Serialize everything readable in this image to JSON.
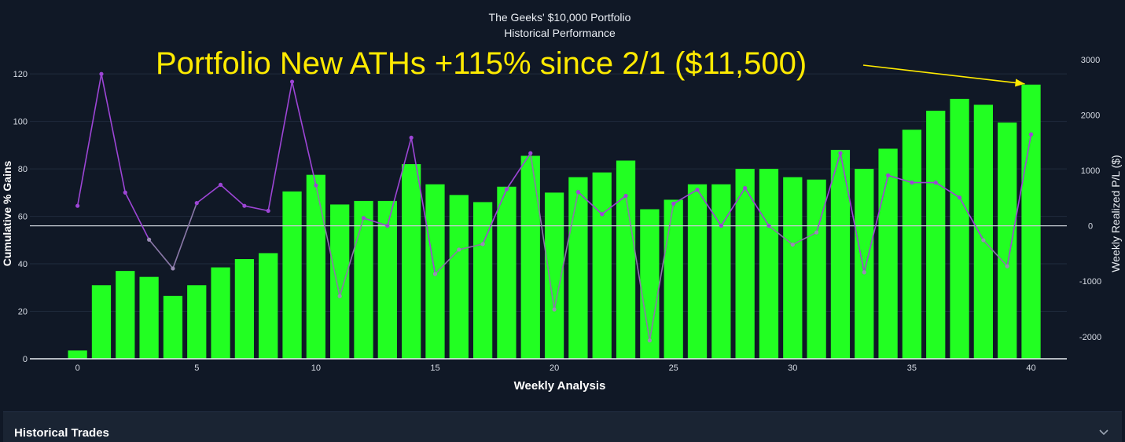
{
  "chart_data": {
    "type": "bar",
    "title": "The Geeks' $10,000 Portfolio",
    "subtitle": "Historical Performance",
    "xlabel": "Weekly Analysis",
    "ylabel": "Cumulative % Gains",
    "y2label": "Weekly Realized P/L ($)",
    "x": [
      0,
      1,
      2,
      3,
      4,
      5,
      6,
      7,
      8,
      9,
      10,
      11,
      12,
      13,
      14,
      15,
      16,
      17,
      18,
      19,
      20,
      21,
      22,
      23,
      24,
      25,
      26,
      27,
      28,
      29,
      30,
      31,
      32,
      33,
      34,
      35,
      36,
      37,
      38,
      39,
      40
    ],
    "xlim": [
      -2,
      41.5
    ],
    "xticks": [
      0,
      5,
      10,
      15,
      20,
      25,
      30,
      35,
      40
    ],
    "ylim": [
      0,
      127
    ],
    "yticks": [
      0,
      20,
      40,
      60,
      80,
      100,
      120
    ],
    "y2lim": [
      -2400,
      3040
    ],
    "y2ticks": [
      -2000,
      -1000,
      0,
      1000,
      2000,
      3000
    ],
    "series": [
      {
        "kind": "bar",
        "axis": "left",
        "color": "#22ff22",
        "values": [
          3.5,
          31,
          37,
          34.5,
          26.5,
          31,
          38.5,
          42,
          44.5,
          70.5,
          77.5,
          65,
          66.5,
          66.5,
          82,
          73.5,
          69,
          66,
          72.5,
          85.5,
          70,
          76.5,
          78.5,
          83.5,
          63,
          67,
          73.5,
          73.5,
          80,
          80,
          76.5,
          75.5,
          88,
          80,
          88.5,
          96.5,
          104.5,
          109.5,
          107,
          99.5,
          115.5
        ]
      },
      {
        "kind": "line",
        "axis": "right",
        "color": "#9d45d6",
        "values": [
          360,
          2740,
          600,
          -250,
          -770,
          410,
          740,
          360,
          270,
          2600,
          730,
          -1270,
          140,
          0,
          1590,
          -870,
          -430,
          -330,
          660,
          1310,
          -1510,
          610,
          210,
          540,
          -2070,
          400,
          650,
          0,
          680,
          0,
          -340,
          -120,
          1310,
          -840,
          910,
          780,
          780,
          510,
          -260,
          -730,
          1650
        ]
      }
    ],
    "annotation": {
      "text": "Portfolio New ATHs +115% since 2/1 ($11,500)",
      "color": "#ffea00",
      "target_x": 40
    }
  },
  "panel": {
    "title": "Historical Trades",
    "chevron_icon": "chevron-down-icon"
  },
  "colors": {
    "background": "#101826",
    "axis_text": "#d8dde6",
    "grid": "#1f2b3d",
    "zero_line": "#c9ced6"
  }
}
